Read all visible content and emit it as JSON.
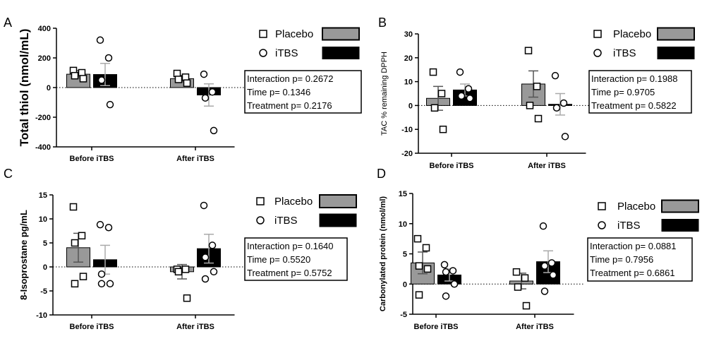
{
  "chart_data": [
    {
      "type": "bar",
      "panel": "A",
      "ylabel": "Total thiol (nmol/mL)",
      "ylim": [
        -400,
        400
      ],
      "yticks": [
        -400,
        -200,
        0,
        200,
        400
      ],
      "categories": [
        "Before iTBS",
        "After iTBS"
      ],
      "series": [
        {
          "name": "Placebo",
          "color": "#999999",
          "marker": "square",
          "values": [
            90,
            60
          ],
          "sem": [
            25,
            22
          ],
          "points": [
            [
              115,
              100,
              80,
              60
            ],
            [
              95,
              70,
              55,
              30
            ]
          ]
        },
        {
          "name": "iTBS",
          "color": "#000000",
          "marker": "circle",
          "values": [
            88,
            -50
          ],
          "sem": [
            75,
            75
          ],
          "points": [
            [
              320,
              200,
              50,
              -115
            ],
            [
              90,
              -30,
              -70,
              -290
            ]
          ]
        }
      ],
      "stats": {
        "interaction": "Interaction p= 0.2672",
        "time": "Time p= 0.1346",
        "treatment": "Treatment p= 0.2176"
      }
    },
    {
      "type": "bar",
      "panel": "B",
      "ylabel": "TAC % remaining DPPH",
      "ylim": [
        -20,
        30
      ],
      "yticks": [
        -20,
        -10,
        0,
        10,
        20,
        30
      ],
      "categories": [
        "Before iTBS",
        "After iTBS"
      ],
      "series": [
        {
          "name": "Placebo",
          "color": "#999999",
          "marker": "square",
          "values": [
            3,
            9
          ],
          "sem": [
            5,
            5.5
          ],
          "points": [
            [
              14,
              5,
              -1,
              -10
            ],
            [
              23,
              8,
              0,
              -5.5
            ]
          ]
        },
        {
          "name": "iTBS",
          "color": "#000000",
          "marker": "circle",
          "values": [
            6.5,
            0.5
          ],
          "sem": [
            2.5,
            4.5
          ],
          "points": [
            [
              14,
              7,
              4,
              3
            ],
            [
              12.5,
              1,
              -1,
              -13
            ]
          ]
        }
      ],
      "stats": {
        "interaction": "Interaction p= 0.1988",
        "time": "Time p= 0.9705",
        "treatment": "Treatment p= 0.5822"
      }
    },
    {
      "type": "bar",
      "panel": "C",
      "ylabel": "8-Isoprostane pg/mL",
      "ylim": [
        -10,
        15
      ],
      "yticks": [
        -10,
        -5,
        0,
        5,
        10,
        15
      ],
      "categories": [
        "Before iTBS",
        "After iTBS"
      ],
      "series": [
        {
          "name": "Placebo",
          "color": "#999999",
          "marker": "square",
          "values": [
            4,
            -1
          ],
          "sem": [
            3,
            1.5
          ],
          "points": [
            [
              12.5,
              6.5,
              5,
              -2,
              -3.5
            ],
            [
              -0.5,
              -0.5,
              -1,
              -6.5
            ]
          ]
        },
        {
          "name": "iTBS",
          "color": "#000000",
          "marker": "circle",
          "values": [
            1.5,
            3.8
          ],
          "sem": [
            3,
            3
          ],
          "points": [
            [
              8.8,
              8.2,
              -1.5,
              -3.5,
              -3.5
            ],
            [
              12.8,
              4.5,
              2,
              -1,
              -2.5
            ]
          ]
        }
      ],
      "stats": {
        "interaction": "Interaction p= 0.1640",
        "time": "Time p= 0.5520",
        "treatment": "Treatment p= 0.5752"
      }
    },
    {
      "type": "bar",
      "panel": "D",
      "ylabel": "Carbonylated protein (nmol/ml)",
      "ylim": [
        -5,
        15
      ],
      "yticks": [
        -5,
        0,
        5,
        10,
        15
      ],
      "categories": [
        "Before iTBS",
        "After iTBS"
      ],
      "series": [
        {
          "name": "Placebo",
          "color": "#999999",
          "marker": "square",
          "values": [
            3.5,
            0.5
          ],
          "sem": [
            1.8,
            1.3
          ],
          "points": [
            [
              7.5,
              6,
              3,
              2.5,
              -1.8
            ],
            [
              2,
              1,
              -0.5,
              -3.6
            ]
          ]
        },
        {
          "name": "iTBS",
          "color": "#000000",
          "marker": "circle",
          "values": [
            1.5,
            3.7
          ],
          "sem": [
            1,
            1.8
          ],
          "points": [
            [
              3.2,
              2.2,
              2,
              0,
              -2
            ],
            [
              9.6,
              3.5,
              3,
              1.5,
              -1.2
            ]
          ]
        }
      ],
      "stats": {
        "interaction": "Interaction p= 0.0881",
        "time": "Time p= 0.7956",
        "treatment": "Treatment p= 0.6861"
      }
    }
  ]
}
